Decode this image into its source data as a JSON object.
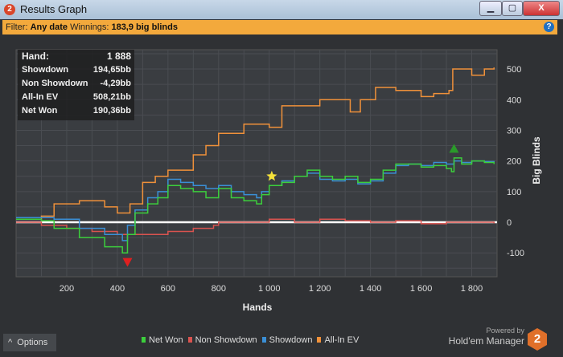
{
  "window": {
    "title": "Results Graph",
    "app_icon": "2",
    "minimize": "▁",
    "maximize": "▢",
    "close": "X"
  },
  "filter": {
    "label": "Filter:",
    "date": "Any date",
    "winnings_label": "Winnings:",
    "winnings": "183,9 big blinds",
    "help": "?"
  },
  "info": [
    {
      "k": "Hand:",
      "v": "1 888"
    },
    {
      "k": "Showdown",
      "v": "194,65bb"
    },
    {
      "k": "Non Showdown",
      "v": "-4,29bb"
    },
    {
      "k": "All-In EV",
      "v": "508,21bb"
    },
    {
      "k": "Net Won",
      "v": "190,36bb"
    }
  ],
  "options_label": "Options",
  "options_icon": "^",
  "powered_by": "Powered by",
  "brand": "Hold'em Manager",
  "brand_logo": "2",
  "chart_data": {
    "type": "line",
    "xlabel": "Hands",
    "ylabel": "Big Blinds",
    "xlim": [
      0,
      1900
    ],
    "ylim": [
      -178,
      563
    ],
    "xticks": [
      200,
      400,
      600,
      800,
      1000,
      1200,
      1400,
      1600,
      1800
    ],
    "xtick_labels": [
      "200",
      "400",
      "600",
      "800",
      "1 000",
      "1 200",
      "1 400",
      "1 600",
      "1 800"
    ],
    "yticks": [
      -100,
      0,
      100,
      200,
      300,
      400,
      500
    ],
    "grid": true,
    "legend": "bottom",
    "series": [
      {
        "name": "Net Won",
        "color": "#3ccf3c",
        "points": [
          [
            0,
            10
          ],
          [
            100,
            5
          ],
          [
            150,
            -20
          ],
          [
            250,
            -50
          ],
          [
            350,
            -80
          ],
          [
            420,
            -100
          ],
          [
            440,
            -40
          ],
          [
            470,
            30
          ],
          [
            520,
            60
          ],
          [
            560,
            80
          ],
          [
            600,
            120
          ],
          [
            650,
            110
          ],
          [
            700,
            100
          ],
          [
            750,
            80
          ],
          [
            800,
            110
          ],
          [
            850,
            80
          ],
          [
            900,
            70
          ],
          [
            950,
            60
          ],
          [
            970,
            90
          ],
          [
            1000,
            120
          ],
          [
            1050,
            130
          ],
          [
            1100,
            150
          ],
          [
            1150,
            170
          ],
          [
            1200,
            150
          ],
          [
            1250,
            140
          ],
          [
            1300,
            150
          ],
          [
            1350,
            130
          ],
          [
            1400,
            140
          ],
          [
            1450,
            170
          ],
          [
            1500,
            190
          ],
          [
            1550,
            190
          ],
          [
            1600,
            180
          ],
          [
            1650,
            185
          ],
          [
            1700,
            175
          ],
          [
            1720,
            165
          ],
          [
            1730,
            210
          ],
          [
            1760,
            190
          ],
          [
            1800,
            200
          ],
          [
            1850,
            195
          ],
          [
            1888,
            190
          ]
        ]
      },
      {
        "name": "Non Showdown",
        "color": "#d9534f",
        "points": [
          [
            0,
            0
          ],
          [
            100,
            -10
          ],
          [
            200,
            -20
          ],
          [
            300,
            -30
          ],
          [
            400,
            -40
          ],
          [
            500,
            -40
          ],
          [
            600,
            -30
          ],
          [
            700,
            -20
          ],
          [
            780,
            -10
          ],
          [
            800,
            0
          ],
          [
            900,
            0
          ],
          [
            1000,
            10
          ],
          [
            1100,
            0
          ],
          [
            1200,
            10
          ],
          [
            1300,
            5
          ],
          [
            1400,
            0
          ],
          [
            1500,
            5
          ],
          [
            1600,
            -5
          ],
          [
            1700,
            0
          ],
          [
            1888,
            -4
          ]
        ]
      },
      {
        "name": "Showdown",
        "color": "#3a8fd6",
        "points": [
          [
            0,
            15
          ],
          [
            100,
            15
          ],
          [
            150,
            10
          ],
          [
            250,
            -20
          ],
          [
            350,
            -40
          ],
          [
            420,
            -60
          ],
          [
            440,
            -10
          ],
          [
            470,
            40
          ],
          [
            520,
            80
          ],
          [
            560,
            100
          ],
          [
            600,
            140
          ],
          [
            650,
            130
          ],
          [
            700,
            120
          ],
          [
            750,
            110
          ],
          [
            800,
            120
          ],
          [
            850,
            100
          ],
          [
            900,
            90
          ],
          [
            950,
            80
          ],
          [
            970,
            100
          ],
          [
            1000,
            120
          ],
          [
            1050,
            135
          ],
          [
            1100,
            150
          ],
          [
            1150,
            160
          ],
          [
            1200,
            140
          ],
          [
            1250,
            135
          ],
          [
            1300,
            140
          ],
          [
            1350,
            125
          ],
          [
            1400,
            135
          ],
          [
            1450,
            160
          ],
          [
            1500,
            185
          ],
          [
            1550,
            190
          ],
          [
            1600,
            185
          ],
          [
            1650,
            195
          ],
          [
            1700,
            190
          ],
          [
            1730,
            200
          ],
          [
            1760,
            195
          ],
          [
            1800,
            200
          ],
          [
            1850,
            198
          ],
          [
            1888,
            195
          ]
        ]
      },
      {
        "name": "All-In EV",
        "color": "#f0913a",
        "points": [
          [
            0,
            10
          ],
          [
            100,
            20
          ],
          [
            150,
            60
          ],
          [
            250,
            70
          ],
          [
            350,
            50
          ],
          [
            400,
            30
          ],
          [
            450,
            60
          ],
          [
            500,
            130
          ],
          [
            550,
            150
          ],
          [
            600,
            170
          ],
          [
            700,
            220
          ],
          [
            750,
            250
          ],
          [
            800,
            290
          ],
          [
            900,
            320
          ],
          [
            1000,
            310
          ],
          [
            1050,
            380
          ],
          [
            1200,
            400
          ],
          [
            1320,
            360
          ],
          [
            1360,
            400
          ],
          [
            1420,
            440
          ],
          [
            1500,
            430
          ],
          [
            1600,
            410
          ],
          [
            1650,
            420
          ],
          [
            1710,
            430
          ],
          [
            1725,
            500
          ],
          [
            1800,
            480
          ],
          [
            1850,
            500
          ],
          [
            1888,
            505
          ]
        ]
      }
    ],
    "markers": [
      {
        "type": "down-triangle",
        "color": "#e02020",
        "x": 440,
        "y": -130
      },
      {
        "type": "star",
        "color": "#f5e23a",
        "x": 1010,
        "y": 150
      },
      {
        "type": "up-triangle",
        "color": "#2a9a2a",
        "x": 1730,
        "y": 240
      }
    ]
  }
}
